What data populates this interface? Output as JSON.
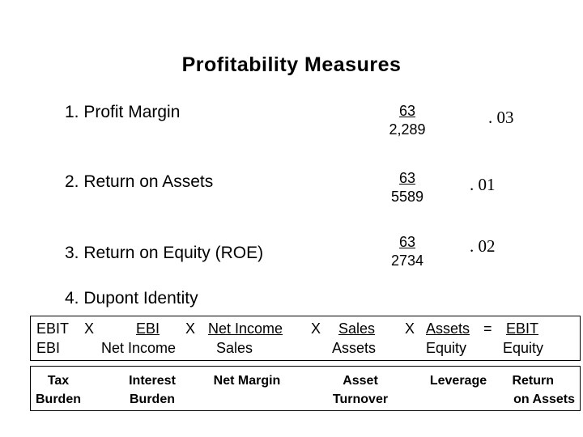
{
  "title": "Profitability Measures",
  "measures": [
    {
      "label": "1.  Profit Margin",
      "numerator": "63",
      "denominator": "2,289",
      "result": ". 03"
    },
    {
      "label": "2.  Return on Assets",
      "numerator": "63",
      "denominator": "5589",
      "result": ". 01"
    },
    {
      "label": "3.  Return on Equity (ROE)",
      "numerator": "63",
      "denominator": "2734",
      "result": ". 02"
    }
  ],
  "dupont": {
    "heading": "4.  Dupont Identity",
    "formula": {
      "f1_top": "EBIT",
      "f1_bottom": "EBI",
      "x1": "X",
      "f2_top": "EBI",
      "f2_bottom": "Net Income",
      "x2": "X",
      "f3_top": "Net Income",
      "f3_bottom": "Sales",
      "x3": "X",
      "f4_top": "Sales",
      "f4_bottom": "Assets",
      "x4": "X",
      "f5_top": "Assets",
      "f5_bottom": "Equity",
      "eq": "=",
      "f6_top": "EBIT",
      "f6_bottom": "Equity"
    },
    "labels": [
      {
        "line1": "Tax",
        "line2": "Burden"
      },
      {
        "line1": "Interest",
        "line2": "Burden"
      },
      {
        "line1": "Net Margin",
        "line2": ""
      },
      {
        "line1": "Asset",
        "line2": "Turnover"
      },
      {
        "line1": "Leverage",
        "line2": ""
      },
      {
        "line1": "Return",
        "line2": "on Assets"
      }
    ]
  }
}
